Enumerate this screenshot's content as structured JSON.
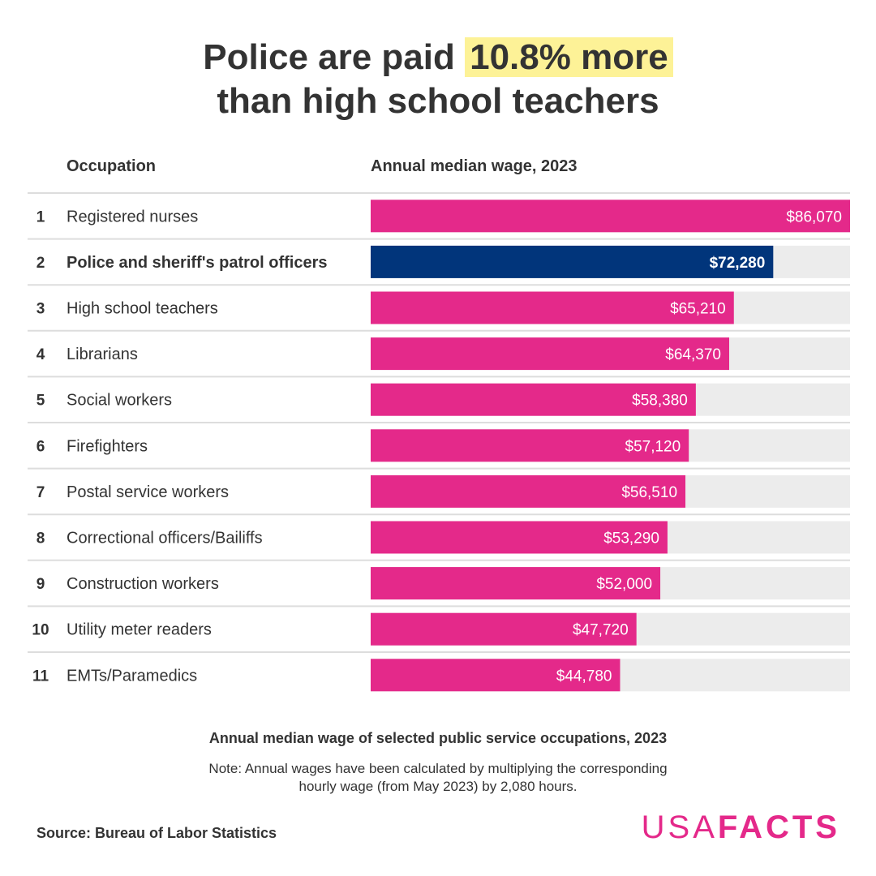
{
  "title": {
    "line1_prefix": "Police are paid ",
    "line1_highlight": "10.8% more",
    "line2": "than high school teachers"
  },
  "table_header": {
    "occupation": "Occupation",
    "wage": "Annual median wage, 2023"
  },
  "colors": {
    "bar_default": "#e4298a",
    "bar_highlight": "#01357b",
    "bar_track": "#ececec",
    "divider": "#dddddd",
    "highlight_bg": "#fdf297"
  },
  "chart_data": {
    "type": "bar",
    "orientation": "horizontal",
    "title": "Police are paid 10.8% more than high school teachers",
    "xlabel": "Annual median wage, 2023",
    "ylabel": "Occupation",
    "xlim": [
      0,
      86070
    ],
    "highlight_index": 1,
    "ranks": [
      "1",
      "2",
      "3",
      "4",
      "5",
      "6",
      "7",
      "8",
      "9",
      "10",
      "11"
    ],
    "categories": [
      "Registered nurses",
      "Police and sheriff's patrol officers",
      "High school teachers",
      "Librarians",
      "Social workers",
      "Firefighters",
      "Postal service workers",
      "Correctional officers/Bailiffs",
      "Construction workers",
      "Utility meter readers",
      "EMTs/Paramedics"
    ],
    "values": [
      86070,
      72280,
      65210,
      64370,
      58380,
      57120,
      56510,
      53290,
      52000,
      47720,
      44780
    ],
    "value_labels": [
      "$86,070",
      "$72,280",
      "$65,210",
      "$64,370",
      "$58,380",
      "$57,120",
      "$56,510",
      "$53,290",
      "$52,000",
      "$47,720",
      "$44,780"
    ]
  },
  "footer": {
    "subtitle": "Annual median wage of selected public service occupations, 2023",
    "note": "Note: Annual wages have been calculated by multiplying the corresponding hourly wage (from May 2023) by 2,080 hours.",
    "source": "Source: Bureau of Labor Statistics",
    "logo_part1": "USA",
    "logo_part2": "FACTS"
  }
}
